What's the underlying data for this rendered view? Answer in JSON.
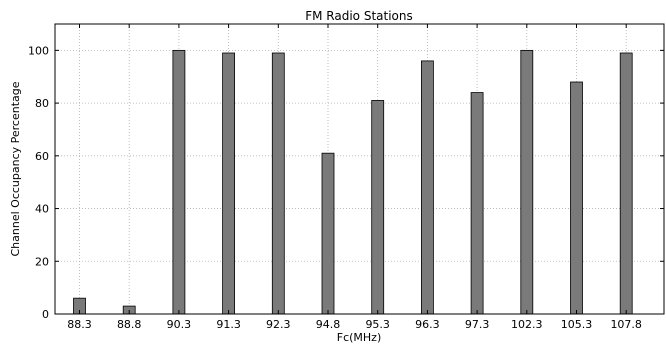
{
  "chart_data": {
    "type": "bar",
    "title": "FM Radio Stations",
    "xlabel": "Fc(MHz)",
    "ylabel": "Channel Occupancy Percentage",
    "categories": [
      "88.3",
      "88.8",
      "90.3",
      "91.3",
      "92.3",
      "94.8",
      "95.3",
      "96.3",
      "97.3",
      "102.3",
      "105.3",
      "107.8"
    ],
    "values": [
      6,
      3,
      100,
      99,
      99,
      61,
      81,
      96,
      84,
      100,
      88,
      99
    ],
    "ylim": [
      0,
      110
    ],
    "yticks": [
      0,
      20,
      40,
      60,
      80,
      100
    ],
    "grid": true,
    "bar_color": "#7a7a7a"
  }
}
